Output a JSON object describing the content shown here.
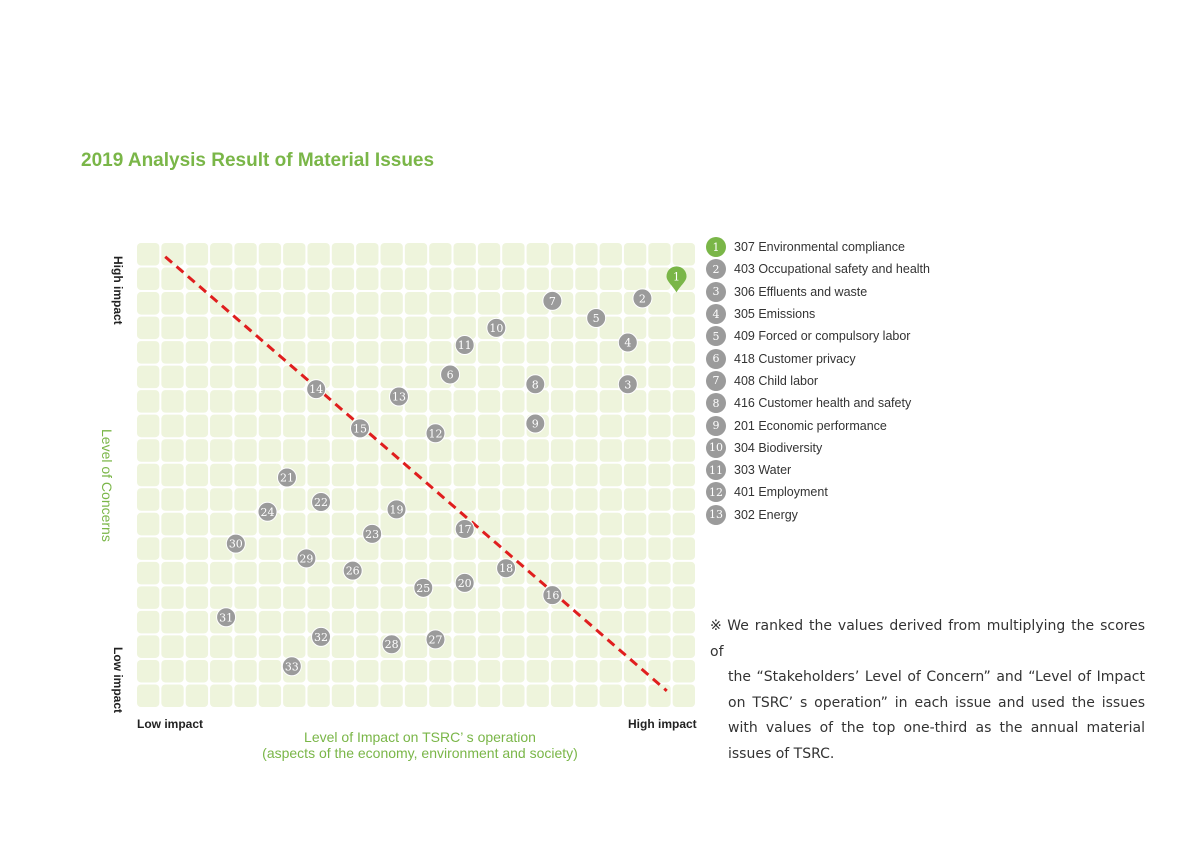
{
  "title": "2019 Analysis Result of Material Issues",
  "chart_data": {
    "type": "scatter",
    "xlabel_line1": "Level of Impact on TSRC’ s operation",
    "xlabel_line2": "(aspects of the economy, environment and society)",
    "ylabel": "Level of Concerns",
    "x_low_label": "Low impact",
    "x_high_label": "High impact",
    "y_high_label": "High impact",
    "y_low_label": "Low impact",
    "xlim": [
      0,
      23
    ],
    "ylim": [
      0,
      19
    ],
    "grid": true,
    "threshold_line": {
      "from": [
        1.2,
        18.4
      ],
      "to": [
        21.8,
        0.7
      ],
      "color": "#e01e1e"
    },
    "points": [
      {
        "label": "1",
        "x": 22.2,
        "y": 17.6,
        "color": "#7ab648"
      },
      {
        "label": "2",
        "x": 20.8,
        "y": 16.7,
        "color": "#9b9b9b"
      },
      {
        "label": "3",
        "x": 20.2,
        "y": 13.2,
        "color": "#9b9b9b"
      },
      {
        "label": "4",
        "x": 20.2,
        "y": 14.9,
        "color": "#9b9b9b"
      },
      {
        "label": "5",
        "x": 18.9,
        "y": 15.9,
        "color": "#9b9b9b"
      },
      {
        "label": "6",
        "x": 12.9,
        "y": 13.6,
        "color": "#9b9b9b"
      },
      {
        "label": "7",
        "x": 17.1,
        "y": 16.6,
        "color": "#9b9b9b"
      },
      {
        "label": "8",
        "x": 16.4,
        "y": 13.2,
        "color": "#9b9b9b"
      },
      {
        "label": "9",
        "x": 16.4,
        "y": 11.6,
        "color": "#9b9b9b"
      },
      {
        "label": "10",
        "x": 14.8,
        "y": 15.5,
        "color": "#9b9b9b"
      },
      {
        "label": "11",
        "x": 13.5,
        "y": 14.8,
        "color": "#9b9b9b"
      },
      {
        "label": "12",
        "x": 12.3,
        "y": 11.2,
        "color": "#9b9b9b"
      },
      {
        "label": "13",
        "x": 10.8,
        "y": 12.7,
        "color": "#9b9b9b"
      },
      {
        "label": "14",
        "x": 7.4,
        "y": 13.0,
        "color": "#9b9b9b"
      },
      {
        "label": "15",
        "x": 9.2,
        "y": 11.4,
        "color": "#9b9b9b"
      },
      {
        "label": "16",
        "x": 17.1,
        "y": 4.6,
        "color": "#9b9b9b"
      },
      {
        "label": "17",
        "x": 13.5,
        "y": 7.3,
        "color": "#9b9b9b"
      },
      {
        "label": "18",
        "x": 15.2,
        "y": 5.7,
        "color": "#9b9b9b"
      },
      {
        "label": "19",
        "x": 10.7,
        "y": 8.1,
        "color": "#9b9b9b"
      },
      {
        "label": "20",
        "x": 13.5,
        "y": 5.1,
        "color": "#9b9b9b"
      },
      {
        "label": "21",
        "x": 6.2,
        "y": 9.4,
        "color": "#9b9b9b"
      },
      {
        "label": "22",
        "x": 7.6,
        "y": 8.4,
        "color": "#9b9b9b"
      },
      {
        "label": "23",
        "x": 9.7,
        "y": 7.1,
        "color": "#9b9b9b"
      },
      {
        "label": "24",
        "x": 5.4,
        "y": 8.0,
        "color": "#9b9b9b"
      },
      {
        "label": "25",
        "x": 11.8,
        "y": 4.9,
        "color": "#9b9b9b"
      },
      {
        "label": "26",
        "x": 8.9,
        "y": 5.6,
        "color": "#9b9b9b"
      },
      {
        "label": "27",
        "x": 12.3,
        "y": 2.8,
        "color": "#9b9b9b"
      },
      {
        "label": "28",
        "x": 10.5,
        "y": 2.6,
        "color": "#9b9b9b"
      },
      {
        "label": "29",
        "x": 7.0,
        "y": 6.1,
        "color": "#9b9b9b"
      },
      {
        "label": "30",
        "x": 4.1,
        "y": 6.7,
        "color": "#9b9b9b"
      },
      {
        "label": "31",
        "x": 3.7,
        "y": 3.7,
        "color": "#9b9b9b"
      },
      {
        "label": "32",
        "x": 7.6,
        "y": 2.9,
        "color": "#9b9b9b"
      },
      {
        "label": "33",
        "x": 6.4,
        "y": 1.7,
        "color": "#9b9b9b"
      }
    ]
  },
  "legend": [
    {
      "num": "1",
      "text": "307 Environmental compliance"
    },
    {
      "num": "2",
      "text": "403 Occupational safety and health"
    },
    {
      "num": "3",
      "text": "306 Effluents and waste"
    },
    {
      "num": "4",
      "text": "305 Emissions"
    },
    {
      "num": "5",
      "text": "409 Forced or compulsory labor"
    },
    {
      "num": "6",
      "text": "418 Customer privacy"
    },
    {
      "num": "7",
      "text": "408 Child labor"
    },
    {
      "num": "8",
      "text": "416 Customer health and safety"
    },
    {
      "num": "9",
      "text": "201 Economic performance"
    },
    {
      "num": "10",
      "text": "304 Biodiversity"
    },
    {
      "num": "11",
      "text": "303 Water"
    },
    {
      "num": "12",
      "text": "401 Employment"
    },
    {
      "num": "13",
      "text": "302 Energy"
    }
  ],
  "note": {
    "mark": "※",
    "first": "We ranked the values derived from multiplying the scores of",
    "rest": "the “Stakeholders’ Level of Concern” and “Level of Impact on TSRC’ s operation” in each issue and used the issues with values of the top one-third as the annual material issues of TSRC."
  }
}
